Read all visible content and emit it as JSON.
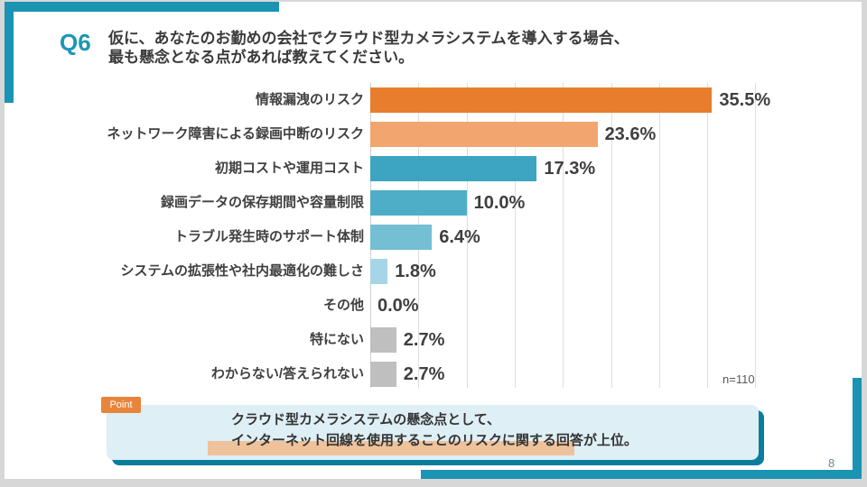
{
  "header": {
    "q_label": "Q6",
    "title_line1": "仮に、あなたのお勤めの会社でクラウド型カメラシステムを導入する場合、",
    "title_line2": "最も懸念となる点があれば教えてください。"
  },
  "chart_data": {
    "type": "bar",
    "orientation": "horizontal",
    "categories": [
      "情報漏洩のリスク",
      "ネットワーク障害による録画中断のリスク",
      "初期コストや運用コスト",
      "録画データの保存期間や容量制限",
      "トラブル発生時のサポート体制",
      "システムの拡張性や社内最適化の難しさ",
      "その他",
      "特にない",
      "わからない/答えられない"
    ],
    "values": [
      35.5,
      23.6,
      17.3,
      10.0,
      6.4,
      1.8,
      0.0,
      2.7,
      2.7
    ],
    "value_labels": [
      "35.5%",
      "23.6%",
      "17.3%",
      "10.0%",
      "6.4%",
      "1.8%",
      "0.0%",
      "2.7%",
      "2.7%"
    ],
    "bar_colors": [
      "#e87e2d",
      "#f2a56e",
      "#3da5c2",
      "#4eaec7",
      "#74bfd3",
      "#a6d6e5",
      "#bfbfbf",
      "#bfbfbf",
      "#bfbfbf"
    ],
    "xlim": [
      0,
      40
    ],
    "gridline_step": 5,
    "grid": true,
    "legend": "none",
    "sample_size": "n=110"
  },
  "point": {
    "badge": "Point",
    "line1": "クラウド型カメラシステムの懸念点として、",
    "line2": "インターネット回線を使用することのリスクに関する回答が上位。"
  },
  "footer": {
    "page_number": "8"
  },
  "colors": {
    "accent_teal": "#1b93b3",
    "accent_teal_dark": "#0c7c9c",
    "bar_orange": "#e87e2d",
    "bar_orange_light": "#f2a56e",
    "bar_teal": "#3da5c2",
    "bar_gray": "#bfbfbf",
    "point_badge_orange": "#e8853b",
    "point_box_bg": "#deeff5",
    "highlight_peach": "#eec29b"
  }
}
